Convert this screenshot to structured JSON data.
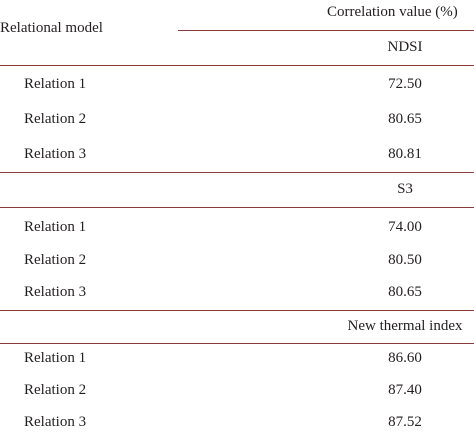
{
  "header": {
    "row_label": "Relational model",
    "value_label": "Correlation value (%)"
  },
  "sections": [
    {
      "title": "NDSI",
      "rows": [
        [
          "Relation 1",
          "72.50"
        ],
        [
          "Relation 2",
          "80.65"
        ],
        [
          "Relation 3",
          "80.81"
        ]
      ]
    },
    {
      "title": "S3",
      "rows": [
        [
          "Relation 1",
          "74.00"
        ],
        [
          "Relation 2",
          "80.50"
        ],
        [
          "Relation 3",
          "80.65"
        ]
      ]
    },
    {
      "title": "New thermal index",
      "rows": [
        [
          "Relation 1",
          "86.60"
        ],
        [
          "Relation 2",
          "87.40"
        ],
        [
          "Relation 3",
          "87.52"
        ]
      ]
    }
  ]
}
